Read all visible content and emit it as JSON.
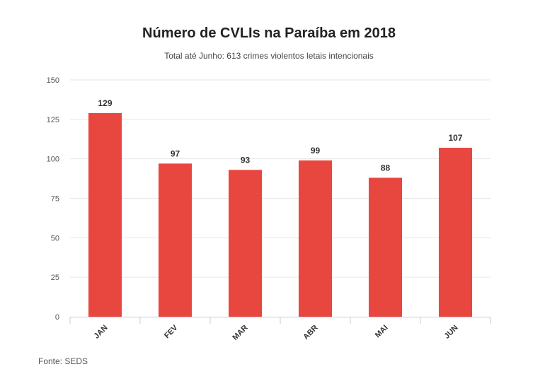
{
  "chart_data": {
    "type": "bar",
    "title": "Número de CVLIs na Paraíba em 2018",
    "subtitle": "Total até Junho: 613 crimes violentos letais intencionais",
    "categories": [
      "JAN",
      "FEV",
      "MAR",
      "ABR",
      "MAI",
      "JUN"
    ],
    "values": [
      129,
      97,
      93,
      99,
      88,
      107
    ],
    "data_labels": [
      "129",
      "97",
      "93",
      "99",
      "88",
      "107"
    ],
    "ylim": [
      0,
      150
    ],
    "yticks": [
      0,
      25,
      50,
      75,
      100,
      125,
      150
    ],
    "ytick_labels": [
      "0",
      "25",
      "50",
      "75",
      "100",
      "125",
      "150"
    ],
    "xlabel": "",
    "ylabel": "",
    "grid": true,
    "bar_color": "#e8473f",
    "source": "Fonte: SEDS"
  }
}
